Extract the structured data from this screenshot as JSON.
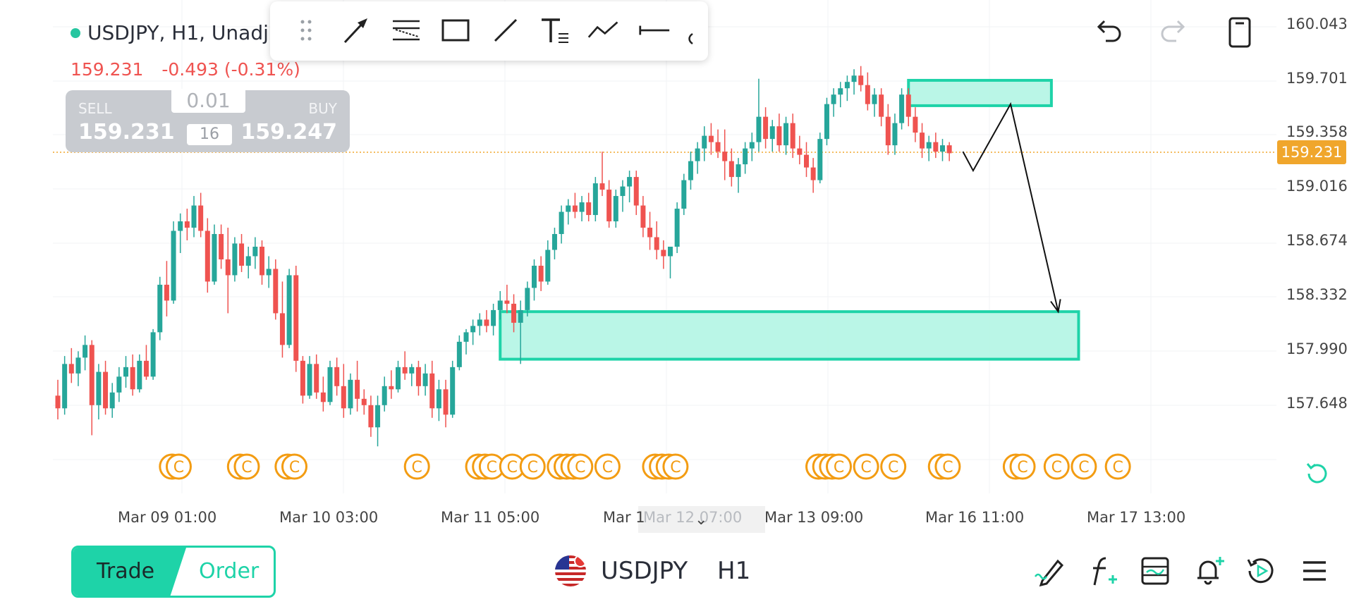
{
  "header": {
    "symbol_line": "USDJPY, H1, Unadj",
    "last_price": "159.231",
    "change": "-0.493 (-0.31%)"
  },
  "trade_panel": {
    "sell_label": "SELL",
    "sell_price": "159.231",
    "buy_label": "BUY",
    "buy_price": "159.247",
    "lot_size": "0.01",
    "spread": "16"
  },
  "toolbar": {
    "icons": [
      "drag-handle-icon",
      "arrow-tool-icon",
      "fib-retracement-icon",
      "rectangle-tool-icon",
      "trend-line-icon",
      "text-tool-icon",
      "path-tool-icon",
      "horizontal-line-icon",
      "more-tools-icon"
    ]
  },
  "top_actions": [
    "undo-icon",
    "redo-icon",
    "layout-icon"
  ],
  "price_axis": {
    "labels": [
      "160.043",
      "159.701",
      "159.358",
      "159.016",
      "158.674",
      "158.332",
      "157.990",
      "157.648"
    ],
    "current_price": "159.231"
  },
  "time_axis": {
    "labels": [
      "Mar 09 01:00",
      "Mar 10 03:00",
      "Mar 11 05:00",
      "Mar 13 09:00",
      "Mar 16 11:00",
      "Mar 17 13:00"
    ],
    "cursor_label": "Mar 12 07:00"
  },
  "chart_data": {
    "type": "candlestick",
    "symbol": "USDJPY",
    "timeframe": "H1",
    "y_range": [
      157.4,
      160.1
    ],
    "candles": [
      {
        "o": 157.7,
        "h": 157.8,
        "l": 157.55,
        "c": 157.62
      },
      {
        "o": 157.62,
        "h": 157.95,
        "l": 157.58,
        "c": 157.9
      },
      {
        "o": 157.9,
        "h": 158.0,
        "l": 157.78,
        "c": 157.84
      },
      {
        "o": 157.84,
        "h": 157.98,
        "l": 157.76,
        "c": 157.94
      },
      {
        "o": 157.94,
        "h": 158.08,
        "l": 157.86,
        "c": 158.02
      },
      {
        "o": 158.02,
        "h": 158.05,
        "l": 157.45,
        "c": 157.64
      },
      {
        "o": 157.64,
        "h": 157.9,
        "l": 157.55,
        "c": 157.85
      },
      {
        "o": 157.85,
        "h": 157.92,
        "l": 157.58,
        "c": 157.62
      },
      {
        "o": 157.62,
        "h": 157.78,
        "l": 157.56,
        "c": 157.72
      },
      {
        "o": 157.72,
        "h": 157.88,
        "l": 157.66,
        "c": 157.82
      },
      {
        "o": 157.82,
        "h": 157.95,
        "l": 157.75,
        "c": 157.88
      },
      {
        "o": 157.88,
        "h": 157.96,
        "l": 157.7,
        "c": 157.74
      },
      {
        "o": 157.74,
        "h": 157.96,
        "l": 157.72,
        "c": 157.92
      },
      {
        "o": 157.92,
        "h": 158.02,
        "l": 157.8,
        "c": 157.82
      },
      {
        "o": 157.82,
        "h": 158.12,
        "l": 157.8,
        "c": 158.1
      },
      {
        "o": 158.1,
        "h": 158.45,
        "l": 158.05,
        "c": 158.4
      },
      {
        "o": 158.4,
        "h": 158.55,
        "l": 158.2,
        "c": 158.3
      },
      {
        "o": 158.3,
        "h": 158.8,
        "l": 158.28,
        "c": 158.74
      },
      {
        "o": 158.74,
        "h": 158.85,
        "l": 158.6,
        "c": 158.8
      },
      {
        "o": 158.8,
        "h": 158.88,
        "l": 158.68,
        "c": 158.76
      },
      {
        "o": 158.76,
        "h": 158.96,
        "l": 158.7,
        "c": 158.9
      },
      {
        "o": 158.9,
        "h": 158.98,
        "l": 158.7,
        "c": 158.74
      },
      {
        "o": 158.74,
        "h": 158.82,
        "l": 158.35,
        "c": 158.42
      },
      {
        "o": 158.42,
        "h": 158.78,
        "l": 158.4,
        "c": 158.72
      },
      {
        "o": 158.72,
        "h": 158.78,
        "l": 158.5,
        "c": 158.56
      },
      {
        "o": 158.56,
        "h": 158.76,
        "l": 158.22,
        "c": 158.46
      },
      {
        "o": 158.46,
        "h": 158.7,
        "l": 158.42,
        "c": 158.66
      },
      {
        "o": 158.66,
        "h": 158.72,
        "l": 158.48,
        "c": 158.52
      },
      {
        "o": 158.52,
        "h": 158.64,
        "l": 158.44,
        "c": 158.58
      },
      {
        "o": 158.58,
        "h": 158.7,
        "l": 158.5,
        "c": 158.64
      },
      {
        "o": 158.64,
        "h": 158.68,
        "l": 158.4,
        "c": 158.46
      },
      {
        "o": 158.46,
        "h": 158.58,
        "l": 158.38,
        "c": 158.5
      },
      {
        "o": 158.5,
        "h": 158.56,
        "l": 158.18,
        "c": 158.22
      },
      {
        "o": 158.22,
        "h": 158.42,
        "l": 157.94,
        "c": 158.02
      },
      {
        "o": 158.02,
        "h": 158.5,
        "l": 158.0,
        "c": 158.46
      },
      {
        "o": 158.46,
        "h": 158.52,
        "l": 157.85,
        "c": 157.92
      },
      {
        "o": 157.92,
        "h": 157.95,
        "l": 157.65,
        "c": 157.7
      },
      {
        "o": 157.7,
        "h": 157.95,
        "l": 157.68,
        "c": 157.9
      },
      {
        "o": 157.9,
        "h": 157.96,
        "l": 157.68,
        "c": 157.72
      },
      {
        "o": 157.72,
        "h": 157.82,
        "l": 157.6,
        "c": 157.66
      },
      {
        "o": 157.66,
        "h": 157.92,
        "l": 157.64,
        "c": 157.88
      },
      {
        "o": 157.88,
        "h": 157.94,
        "l": 157.7,
        "c": 157.76
      },
      {
        "o": 157.76,
        "h": 157.9,
        "l": 157.56,
        "c": 157.62
      },
      {
        "o": 157.62,
        "h": 157.84,
        "l": 157.58,
        "c": 157.8
      },
      {
        "o": 157.8,
        "h": 157.92,
        "l": 157.6,
        "c": 157.68
      },
      {
        "o": 157.68,
        "h": 157.74,
        "l": 157.58,
        "c": 157.64
      },
      {
        "o": 157.64,
        "h": 157.7,
        "l": 157.44,
        "c": 157.5
      },
      {
        "o": 157.5,
        "h": 157.7,
        "l": 157.38,
        "c": 157.64
      },
      {
        "o": 157.64,
        "h": 157.82,
        "l": 157.6,
        "c": 157.76
      },
      {
        "o": 157.76,
        "h": 157.86,
        "l": 157.68,
        "c": 157.74
      },
      {
        "o": 157.74,
        "h": 157.92,
        "l": 157.72,
        "c": 157.88
      },
      {
        "o": 157.88,
        "h": 157.98,
        "l": 157.8,
        "c": 157.84
      },
      {
        "o": 157.84,
        "h": 157.9,
        "l": 157.76,
        "c": 157.88
      },
      {
        "o": 157.88,
        "h": 157.92,
        "l": 157.7,
        "c": 157.76
      },
      {
        "o": 157.76,
        "h": 157.9,
        "l": 157.7,
        "c": 157.84
      },
      {
        "o": 157.84,
        "h": 157.92,
        "l": 157.56,
        "c": 157.62
      },
      {
        "o": 157.62,
        "h": 157.8,
        "l": 157.54,
        "c": 157.74
      },
      {
        "o": 157.74,
        "h": 157.8,
        "l": 157.5,
        "c": 157.58
      },
      {
        "o": 157.58,
        "h": 157.92,
        "l": 157.56,
        "c": 157.88
      },
      {
        "o": 157.88,
        "h": 158.08,
        "l": 157.86,
        "c": 158.04
      },
      {
        "o": 158.04,
        "h": 158.12,
        "l": 157.96,
        "c": 158.1
      },
      {
        "o": 158.1,
        "h": 158.18,
        "l": 158.02,
        "c": 158.14
      },
      {
        "o": 158.14,
        "h": 158.22,
        "l": 158.08,
        "c": 158.18
      },
      {
        "o": 158.18,
        "h": 158.24,
        "l": 158.1,
        "c": 158.14
      },
      {
        "o": 158.14,
        "h": 158.28,
        "l": 158.08,
        "c": 158.24
      },
      {
        "o": 158.24,
        "h": 158.36,
        "l": 158.18,
        "c": 158.3
      },
      {
        "o": 158.3,
        "h": 158.4,
        "l": 158.22,
        "c": 158.28
      },
      {
        "o": 158.28,
        "h": 158.34,
        "l": 158.1,
        "c": 158.16
      },
      {
        "o": 158.16,
        "h": 158.3,
        "l": 157.9,
        "c": 158.24
      },
      {
        "o": 158.24,
        "h": 158.42,
        "l": 158.2,
        "c": 158.38
      },
      {
        "o": 158.38,
        "h": 158.56,
        "l": 158.3,
        "c": 158.52
      },
      {
        "o": 158.52,
        "h": 158.58,
        "l": 158.36,
        "c": 158.42
      },
      {
        "o": 158.42,
        "h": 158.68,
        "l": 158.4,
        "c": 158.62
      },
      {
        "o": 158.62,
        "h": 158.76,
        "l": 158.56,
        "c": 158.72
      },
      {
        "o": 158.72,
        "h": 158.9,
        "l": 158.66,
        "c": 158.86
      },
      {
        "o": 158.86,
        "h": 158.94,
        "l": 158.78,
        "c": 158.9
      },
      {
        "o": 158.9,
        "h": 158.98,
        "l": 158.82,
        "c": 158.86
      },
      {
        "o": 158.86,
        "h": 158.96,
        "l": 158.8,
        "c": 158.92
      },
      {
        "o": 158.92,
        "h": 158.98,
        "l": 158.8,
        "c": 158.84
      },
      {
        "o": 158.84,
        "h": 159.08,
        "l": 158.8,
        "c": 159.04
      },
      {
        "o": 159.04,
        "h": 159.24,
        "l": 158.96,
        "c": 159.0
      },
      {
        "o": 159.0,
        "h": 159.06,
        "l": 158.76,
        "c": 158.8
      },
      {
        "o": 158.8,
        "h": 159.0,
        "l": 158.76,
        "c": 158.96
      },
      {
        "o": 158.96,
        "h": 159.06,
        "l": 158.86,
        "c": 159.02
      },
      {
        "o": 159.02,
        "h": 159.12,
        "l": 158.92,
        "c": 159.08
      },
      {
        "o": 159.08,
        "h": 159.12,
        "l": 158.84,
        "c": 158.9
      },
      {
        "o": 158.9,
        "h": 158.96,
        "l": 158.7,
        "c": 158.76
      },
      {
        "o": 158.76,
        "h": 158.86,
        "l": 158.62,
        "c": 158.7
      },
      {
        "o": 158.7,
        "h": 158.8,
        "l": 158.56,
        "c": 158.62
      },
      {
        "o": 158.62,
        "h": 158.68,
        "l": 158.5,
        "c": 158.58
      },
      {
        "o": 158.58,
        "h": 158.64,
        "l": 158.44,
        "c": 158.64
      },
      {
        "o": 158.64,
        "h": 158.92,
        "l": 158.6,
        "c": 158.88
      },
      {
        "o": 158.88,
        "h": 159.1,
        "l": 158.84,
        "c": 159.06
      },
      {
        "o": 159.06,
        "h": 159.24,
        "l": 159.0,
        "c": 159.18
      },
      {
        "o": 159.18,
        "h": 159.3,
        "l": 159.1,
        "c": 159.26
      },
      {
        "o": 159.26,
        "h": 159.4,
        "l": 159.18,
        "c": 159.34
      },
      {
        "o": 159.34,
        "h": 159.42,
        "l": 159.22,
        "c": 159.3
      },
      {
        "o": 159.3,
        "h": 159.38,
        "l": 159.2,
        "c": 159.24
      },
      {
        "o": 159.24,
        "h": 159.38,
        "l": 159.06,
        "c": 159.18
      },
      {
        "o": 159.18,
        "h": 159.26,
        "l": 159.02,
        "c": 159.08
      },
      {
        "o": 159.08,
        "h": 159.2,
        "l": 158.98,
        "c": 159.16
      },
      {
        "o": 159.16,
        "h": 159.3,
        "l": 159.1,
        "c": 159.26
      },
      {
        "o": 159.26,
        "h": 159.36,
        "l": 159.18,
        "c": 159.3
      },
      {
        "o": 159.3,
        "h": 159.7,
        "l": 159.24,
        "c": 159.46
      },
      {
        "o": 159.46,
        "h": 159.52,
        "l": 159.26,
        "c": 159.32
      },
      {
        "o": 159.32,
        "h": 159.44,
        "l": 159.24,
        "c": 159.4
      },
      {
        "o": 159.4,
        "h": 159.48,
        "l": 159.24,
        "c": 159.28
      },
      {
        "o": 159.28,
        "h": 159.46,
        "l": 159.22,
        "c": 159.42
      },
      {
        "o": 159.42,
        "h": 159.48,
        "l": 159.2,
        "c": 159.26
      },
      {
        "o": 159.26,
        "h": 159.34,
        "l": 159.16,
        "c": 159.22
      },
      {
        "o": 159.22,
        "h": 159.3,
        "l": 159.08,
        "c": 159.14
      },
      {
        "o": 159.14,
        "h": 159.2,
        "l": 158.98,
        "c": 159.06
      },
      {
        "o": 159.06,
        "h": 159.36,
        "l": 159.04,
        "c": 159.32
      },
      {
        "o": 159.32,
        "h": 159.58,
        "l": 159.28,
        "c": 159.54
      },
      {
        "o": 159.54,
        "h": 159.64,
        "l": 159.46,
        "c": 159.6
      },
      {
        "o": 159.6,
        "h": 159.68,
        "l": 159.52,
        "c": 159.64
      },
      {
        "o": 159.64,
        "h": 159.72,
        "l": 159.56,
        "c": 159.68
      },
      {
        "o": 159.68,
        "h": 159.76,
        "l": 159.6,
        "c": 159.72
      },
      {
        "o": 159.72,
        "h": 159.78,
        "l": 159.62,
        "c": 159.66
      },
      {
        "o": 159.66,
        "h": 159.74,
        "l": 159.5,
        "c": 159.54
      },
      {
        "o": 159.54,
        "h": 159.64,
        "l": 159.46,
        "c": 159.6
      },
      {
        "o": 159.6,
        "h": 159.64,
        "l": 159.4,
        "c": 159.46
      },
      {
        "o": 159.46,
        "h": 159.54,
        "l": 159.22,
        "c": 159.28
      },
      {
        "o": 159.28,
        "h": 159.48,
        "l": 159.22,
        "c": 159.42
      },
      {
        "o": 159.42,
        "h": 159.64,
        "l": 159.38,
        "c": 159.6
      },
      {
        "o": 159.6,
        "h": 159.64,
        "l": 159.4,
        "c": 159.46
      },
      {
        "o": 159.46,
        "h": 159.52,
        "l": 159.3,
        "c": 159.36
      },
      {
        "o": 159.36,
        "h": 159.42,
        "l": 159.2,
        "c": 159.26
      },
      {
        "o": 159.26,
        "h": 159.34,
        "l": 159.18,
        "c": 159.3
      },
      {
        "o": 159.3,
        "h": 159.36,
        "l": 159.2,
        "c": 159.24
      },
      {
        "o": 159.24,
        "h": 159.32,
        "l": 159.18,
        "c": 159.28
      },
      {
        "o": 159.28,
        "h": 159.3,
        "l": 159.18,
        "c": 159.23
      }
    ],
    "current_price": 159.231,
    "zones": [
      {
        "name": "supply-zone",
        "y_top": 159.69,
        "y_bottom": 159.53,
        "x_start_index": 125,
        "x_end_index": 146
      },
      {
        "name": "demand-zone",
        "y_top": 158.23,
        "y_bottom": 157.93,
        "x_start_index": 65,
        "x_end_index": 150
      }
    ],
    "projection_path": [
      {
        "index": 133,
        "price": 159.24
      },
      {
        "index": 134.5,
        "price": 159.12
      },
      {
        "index": 140,
        "price": 159.54
      },
      {
        "index": 147,
        "price": 158.23
      }
    ],
    "event_markers": {
      "glyph": "C",
      "groups": [
        [
          12,
          13
        ],
        [
          22,
          23
        ],
        [
          29,
          30
        ],
        [
          48
        ],
        [
          57,
          58,
          59
        ],
        [
          62
        ],
        [
          65
        ],
        [
          69,
          70,
          71,
          72
        ],
        [
          76
        ],
        [
          83,
          84,
          85,
          86
        ],
        [
          107,
          108,
          109,
          110
        ],
        [
          114
        ],
        [
          118
        ],
        [
          125,
          126
        ],
        [
          136,
          137
        ],
        [
          142
        ],
        [
          146
        ],
        [
          151
        ]
      ]
    },
    "colors": {
      "up": "#26a69a",
      "down": "#ef5350",
      "zone_fill": "#b2f5e4",
      "zone_stroke": "#1ed3a8",
      "price_line": "#f0a62c",
      "event_marker": "#f39c12"
    }
  },
  "bottom_bar": {
    "trade_label": "Trade",
    "order_label": "Order",
    "symbol": "USDJPY",
    "timeframe": "H1",
    "icons": [
      "drawing-tools-icon",
      "indicators-icon",
      "chart-settings-icon",
      "add-alert-icon",
      "replay-icon",
      "menu-icon"
    ]
  }
}
